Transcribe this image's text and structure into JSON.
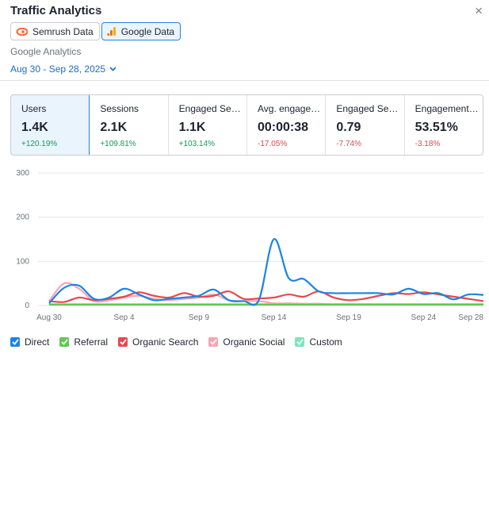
{
  "header": {
    "title": "Traffic Analytics",
    "info_icon": "i",
    "close_icon": "×"
  },
  "sources": [
    {
      "label": "Semrush Data",
      "icon": "semrush-logo-icon",
      "active": false
    },
    {
      "label": "Google Data",
      "icon": "google-analytics-icon",
      "active": true
    }
  ],
  "ga_label": "Google Analytics",
  "date_range": "Aug 30 - Sep 28, 2025",
  "metrics": [
    {
      "label": "Users",
      "value": "1.4K",
      "delta": "+120.19%",
      "trend": "up",
      "active": true
    },
    {
      "label": "Sessions",
      "value": "2.1K",
      "delta": "+109.81%",
      "trend": "up"
    },
    {
      "label": "Engaged Sessions",
      "value": "1.1K",
      "delta": "+103.14%",
      "trend": "up"
    },
    {
      "label": "Avg. engagement time",
      "value": "00:00:38",
      "delta": "-17.05%",
      "trend": "down"
    },
    {
      "label": "Engaged Sessions per user",
      "value": "0.79",
      "delta": "-7.74%",
      "trend": "down"
    },
    {
      "label": "Engagement rate",
      "value": "53.51%",
      "delta": "-3.18%",
      "trend": "down"
    }
  ],
  "colors": {
    "direct": "#1a84e8",
    "referral": "#5fc852",
    "organic_search": "#e8484d",
    "organic_social": "#f7a6b2",
    "custom": "#7ee5bf",
    "accent": "#2c7fd7"
  },
  "legend": [
    {
      "label": "Direct",
      "color": "#1a84e8",
      "checked": true
    },
    {
      "label": "Referral",
      "color": "#5fc852",
      "checked": true
    },
    {
      "label": "Organic Search",
      "color": "#e8484d",
      "checked": true
    },
    {
      "label": "Organic Social",
      "color": "#f7a6b2",
      "checked": true
    },
    {
      "label": "Custom",
      "color": "#7ee5bf",
      "checked": true
    }
  ],
  "chart_data": {
    "type": "line",
    "x": [
      "Aug 30",
      "Aug 31",
      "Sep 1",
      "Sep 2",
      "Sep 3",
      "Sep 4",
      "Sep 5",
      "Sep 6",
      "Sep 7",
      "Sep 8",
      "Sep 9",
      "Sep 10",
      "Sep 11",
      "Sep 12",
      "Sep 13",
      "Sep 14",
      "Sep 15",
      "Sep 16",
      "Sep 17",
      "Sep 18",
      "Sep 19",
      "Sep 20",
      "Sep 21",
      "Sep 22",
      "Sep 23",
      "Sep 24",
      "Sep 25",
      "Sep 26",
      "Sep 27",
      "Sep 28"
    ],
    "xticks": [
      "Aug 30",
      "Sep 4",
      "Sep 9",
      "Sep 14",
      "Sep 19",
      "Sep 24",
      "Sep 28"
    ],
    "yticks": [
      0,
      100,
      200,
      300
    ],
    "ylim": [
      0,
      300
    ],
    "grid": true,
    "series": [
      {
        "name": "Direct",
        "color": "#1a84e8",
        "values": [
          5,
          40,
          45,
          15,
          18,
          38,
          25,
          12,
          15,
          18,
          22,
          36,
          12,
          10,
          12,
          150,
          62,
          60,
          32,
          28,
          28,
          28,
          28,
          25,
          38,
          26,
          28,
          14,
          25,
          24
        ]
      },
      {
        "name": "Referral",
        "color": "#5fc852",
        "values": [
          2,
          2,
          2,
          2,
          2,
          2,
          2,
          2,
          2,
          2,
          2,
          2,
          2,
          2,
          2,
          2,
          2,
          2,
          2,
          2,
          2,
          2,
          2,
          2,
          2,
          2,
          2,
          2,
          2,
          2
        ]
      },
      {
        "name": "Organic Search",
        "color": "#e8484d",
        "values": [
          10,
          8,
          18,
          12,
          15,
          20,
          30,
          22,
          18,
          28,
          20,
          22,
          32,
          15,
          16,
          18,
          25,
          20,
          32,
          18,
          12,
          15,
          22,
          28,
          26,
          30,
          25,
          20,
          15,
          10
        ]
      },
      {
        "name": "Organic Social",
        "color": "#f7a6b2",
        "values": [
          10,
          50,
          38,
          10,
          12,
          18,
          22,
          15,
          12,
          15,
          18,
          25,
          12,
          10,
          10,
          5,
          5,
          4,
          4,
          3,
          3,
          3,
          3,
          3,
          3,
          3,
          3,
          3,
          3,
          3
        ]
      },
      {
        "name": "Custom",
        "color": "#7ee5bf",
        "values": [
          3,
          3,
          3,
          3,
          3,
          3,
          3,
          3,
          3,
          3,
          3,
          3,
          3,
          3,
          3,
          3,
          3,
          3,
          3,
          3,
          3,
          3,
          3,
          3,
          3,
          3,
          3,
          3,
          3,
          3
        ]
      }
    ]
  }
}
